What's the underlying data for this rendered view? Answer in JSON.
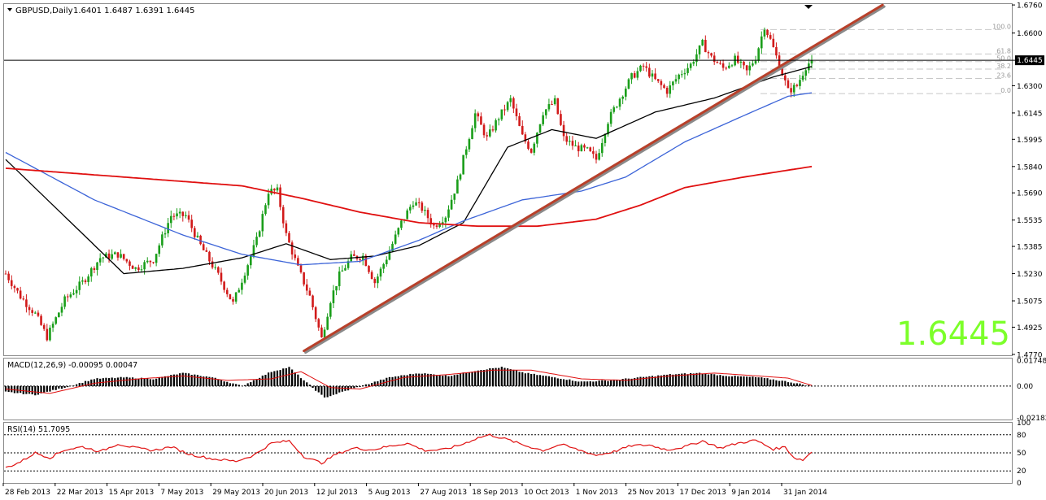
{
  "header": {
    "symbol": "GBPUSD,Daily",
    "ohlc": "1.6401 1.6487 1.6391 1.6445"
  },
  "big_price": "1.6445",
  "price_tag": "1.6445",
  "fib_labels": [
    "100.0",
    "61.8",
    "50.0",
    "38.2",
    "23.6",
    "0.0"
  ],
  "macd": {
    "label": "MACD(12,26,9) -0.00095 0.00047",
    "ticks": [
      "0.01748",
      "0.00",
      "-0.02182"
    ]
  },
  "rsi": {
    "label": "RSI(14) 51.7095",
    "ticks": [
      "100",
      "80",
      "50",
      "20",
      "0"
    ]
  },
  "colors": {
    "bull": "#1a9e1a",
    "bear": "#d11a1a",
    "ma_short": "#000000",
    "ma_mid": "#3c64d8",
    "ma_long": "#e01010",
    "trendline": "#b8402a",
    "big_price": "#7cff2a"
  },
  "chart_data": {
    "type": "candlestick",
    "price_axis": [
      "1.6760",
      "1.6600",
      "1.6445",
      "1.6300",
      "1.6145",
      "1.5995",
      "1.5840",
      "1.5690",
      "1.5535",
      "1.5385",
      "1.5230",
      "1.5075",
      "1.4925",
      "1.4770"
    ],
    "ylim": [
      1.4765,
      1.6765
    ],
    "x_axis_labels": [
      "28 Feb 2013",
      "22 Mar 2013",
      "15 Apr 2013",
      "7 May 2013",
      "29 May 2013",
      "20 Jun 2013",
      "12 Jul 2013",
      "5 Aug 2013",
      "27 Aug 2013",
      "18 Sep 2013",
      "10 Oct 2013",
      "1 Nov 2013",
      "25 Nov 2013",
      "17 Dec 2013",
      "9 Jan 2014",
      "31 Jan 2014"
    ],
    "close_path": [
      [
        0,
        1.523
      ],
      [
        5,
        1.51
      ],
      [
        10,
        1.5
      ],
      [
        14,
        1.487
      ],
      [
        20,
        1.508
      ],
      [
        26,
        1.518
      ],
      [
        32,
        1.532
      ],
      [
        38,
        1.534
      ],
      [
        44,
        1.526
      ],
      [
        50,
        1.531
      ],
      [
        56,
        1.556
      ],
      [
        61,
        1.556
      ],
      [
        66,
        1.539
      ],
      [
        72,
        1.522
      ],
      [
        77,
        1.506
      ],
      [
        81,
        1.524
      ],
      [
        85,
        1.542
      ],
      [
        89,
        1.57
      ],
      [
        92,
        1.57
      ],
      [
        95,
        1.545
      ],
      [
        99,
        1.526
      ],
      [
        103,
        1.51
      ],
      [
        107,
        1.486
      ],
      [
        110,
        1.508
      ],
      [
        113,
        1.522
      ],
      [
        117,
        1.532
      ],
      [
        121,
        1.533
      ],
      [
        125,
        1.518
      ],
      [
        129,
        1.532
      ],
      [
        134,
        1.552
      ],
      [
        138,
        1.564
      ],
      [
        141,
        1.56
      ],
      [
        145,
        1.55
      ],
      [
        149,
        1.556
      ],
      [
        153,
        1.575
      ],
      [
        156,
        1.595
      ],
      [
        159,
        1.614
      ],
      [
        163,
        1.6
      ],
      [
        167,
        1.612
      ],
      [
        171,
        1.622
      ],
      [
        175,
        1.601
      ],
      [
        178,
        1.593
      ],
      [
        182,
        1.615
      ],
      [
        186,
        1.621
      ],
      [
        189,
        1.6
      ],
      [
        193,
        1.595
      ],
      [
        197,
        1.593
      ],
      [
        200,
        1.588
      ],
      [
        204,
        1.61
      ],
      [
        208,
        1.623
      ],
      [
        212,
        1.635
      ],
      [
        216,
        1.641
      ],
      [
        220,
        1.633
      ],
      [
        224,
        1.627
      ],
      [
        228,
        1.636
      ],
      [
        232,
        1.642
      ],
      [
        236,
        1.654
      ],
      [
        239,
        1.646
      ],
      [
        243,
        1.64
      ],
      [
        247,
        1.645
      ],
      [
        251,
        1.638
      ],
      [
        254,
        1.646
      ],
      [
        257,
        1.664
      ],
      [
        259,
        1.656
      ],
      [
        262,
        1.642
      ],
      [
        265,
        1.627
      ],
      [
        268,
        1.63
      ],
      [
        271,
        1.641
      ],
      [
        273,
        1.6445
      ]
    ],
    "series": [
      {
        "values": [
          [
            0,
            1.588
          ],
          [
            40,
            1.523
          ],
          [
            60,
            1.526
          ],
          [
            80,
            1.532
          ],
          [
            95,
            1.54
          ],
          [
            110,
            1.531
          ],
          [
            125,
            1.533
          ],
          [
            140,
            1.539
          ],
          [
            155,
            1.552
          ],
          [
            170,
            1.595
          ],
          [
            185,
            1.605
          ],
          [
            200,
            1.6
          ],
          [
            220,
            1.615
          ],
          [
            240,
            1.623
          ],
          [
            260,
            1.635
          ],
          [
            273,
            1.641
          ]
        ]
      },
      {
        "values": [
          [
            0,
            1.592
          ],
          [
            30,
            1.565
          ],
          [
            60,
            1.545
          ],
          [
            80,
            1.534
          ],
          [
            100,
            1.528
          ],
          [
            120,
            1.53
          ],
          [
            140,
            1.542
          ],
          [
            155,
            1.553
          ],
          [
            175,
            1.565
          ],
          [
            195,
            1.57
          ],
          [
            210,
            1.578
          ],
          [
            230,
            1.598
          ],
          [
            250,
            1.613
          ],
          [
            265,
            1.624
          ],
          [
            273,
            1.626
          ]
        ]
      },
      {
        "values": [
          [
            0,
            1.583
          ],
          [
            40,
            1.578
          ],
          [
            80,
            1.573
          ],
          [
            100,
            1.566
          ],
          [
            120,
            1.558
          ],
          [
            140,
            1.552
          ],
          [
            160,
            1.55
          ],
          [
            180,
            1.55
          ],
          [
            200,
            1.554
          ],
          [
            215,
            1.562
          ],
          [
            230,
            1.572
          ],
          [
            250,
            1.578
          ],
          [
            273,
            1.584
          ]
        ]
      }
    ],
    "trendline": [
      [
        101,
        1.479
      ],
      [
        297,
        1.676
      ]
    ],
    "last_price": 1.6445,
    "fibonacci": {
      "high": 1.662,
      "low": 1.6255,
      "levels": [
        1.0,
        0.618,
        0.5,
        0.382,
        0.236,
        0.0
      ]
    },
    "macd_ylim": [
      -0.023,
      0.019
    ],
    "macd_ref": [
      0.01748,
      0.0,
      -0.02182
    ],
    "macd_hist_path": [
      [
        0,
        -0.004
      ],
      [
        10,
        -0.006
      ],
      [
        20,
        -0.001
      ],
      [
        30,
        0.005
      ],
      [
        40,
        0.006
      ],
      [
        50,
        0.005
      ],
      [
        60,
        0.009
      ],
      [
        70,
        0.006
      ],
      [
        80,
        0.0
      ],
      [
        90,
        0.01
      ],
      [
        96,
        0.013
      ],
      [
        101,
        0.004
      ],
      [
        108,
        -0.008
      ],
      [
        114,
        -0.004
      ],
      [
        122,
        0.001
      ],
      [
        130,
        0.006
      ],
      [
        140,
        0.009
      ],
      [
        150,
        0.007
      ],
      [
        160,
        0.011
      ],
      [
        168,
        0.013
      ],
      [
        176,
        0.009
      ],
      [
        186,
        0.006
      ],
      [
        195,
        0.003
      ],
      [
        205,
        0.004
      ],
      [
        215,
        0.006
      ],
      [
        225,
        0.008
      ],
      [
        235,
        0.009
      ],
      [
        245,
        0.007
      ],
      [
        255,
        0.006
      ],
      [
        265,
        0.003
      ],
      [
        273,
        0.0
      ]
    ],
    "macd_signal_path": [
      [
        0,
        -0.002
      ],
      [
        15,
        -0.005
      ],
      [
        30,
        0.002
      ],
      [
        45,
        0.005
      ],
      [
        60,
        0.007
      ],
      [
        75,
        0.004
      ],
      [
        90,
        0.005
      ],
      [
        100,
        0.01
      ],
      [
        110,
        -0.001
      ],
      [
        120,
        -0.002
      ],
      [
        135,
        0.006
      ],
      [
        150,
        0.008
      ],
      [
        165,
        0.011
      ],
      [
        178,
        0.011
      ],
      [
        195,
        0.005
      ],
      [
        210,
        0.004
      ],
      [
        225,
        0.007
      ],
      [
        240,
        0.009
      ],
      [
        255,
        0.007
      ],
      [
        265,
        0.0055
      ],
      [
        273,
        0.0005
      ]
    ],
    "rsi_ylim": [
      0,
      100
    ],
    "rsi_levels": [
      80,
      50,
      20
    ],
    "rsi_path": [
      [
        0,
        25
      ],
      [
        5,
        35
      ],
      [
        10,
        50
      ],
      [
        15,
        42
      ],
      [
        20,
        55
      ],
      [
        26,
        60
      ],
      [
        32,
        52
      ],
      [
        38,
        65
      ],
      [
        44,
        58
      ],
      [
        50,
        54
      ],
      [
        56,
        60
      ],
      [
        62,
        48
      ],
      [
        70,
        40
      ],
      [
        78,
        36
      ],
      [
        84,
        46
      ],
      [
        90,
        66
      ],
      [
        96,
        70
      ],
      [
        101,
        44
      ],
      [
        107,
        33
      ],
      [
        112,
        48
      ],
      [
        118,
        58
      ],
      [
        124,
        55
      ],
      [
        130,
        61
      ],
      [
        136,
        66
      ],
      [
        142,
        54
      ],
      [
        148,
        55
      ],
      [
        154,
        63
      ],
      [
        160,
        75
      ],
      [
        164,
        80
      ],
      [
        170,
        72
      ],
      [
        176,
        62
      ],
      [
        182,
        54
      ],
      [
        188,
        64
      ],
      [
        194,
        55
      ],
      [
        200,
        46
      ],
      [
        206,
        52
      ],
      [
        212,
        62
      ],
      [
        218,
        63
      ],
      [
        224,
        55
      ],
      [
        230,
        60
      ],
      [
        236,
        70
      ],
      [
        242,
        58
      ],
      [
        248,
        66
      ],
      [
        254,
        71
      ],
      [
        260,
        56
      ],
      [
        264,
        60
      ],
      [
        267,
        42
      ],
      [
        270,
        38
      ],
      [
        273,
        52
      ]
    ]
  }
}
